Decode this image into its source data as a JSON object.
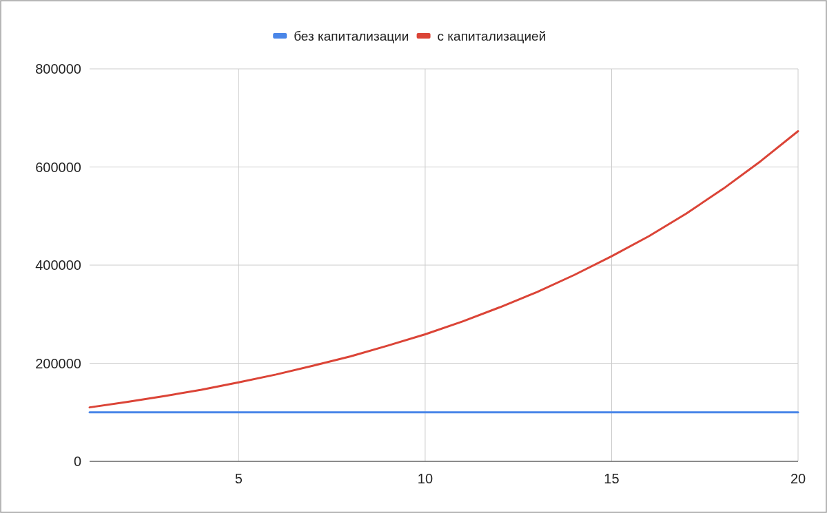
{
  "chart_data": {
    "type": "line",
    "x": [
      1,
      2,
      3,
      4,
      5,
      6,
      7,
      8,
      9,
      10,
      11,
      12,
      13,
      14,
      15,
      16,
      17,
      18,
      19,
      20
    ],
    "series": [
      {
        "name": "без капитализации",
        "color": "#4a86e8",
        "values": [
          100000,
          100000,
          100000,
          100000,
          100000,
          100000,
          100000,
          100000,
          100000,
          100000,
          100000,
          100000,
          100000,
          100000,
          100000,
          100000,
          100000,
          100000,
          100000,
          100000
        ]
      },
      {
        "name": "с капитализацией",
        "color": "#db4437",
        "values": [
          110000,
          121000,
          133000,
          146000,
          161000,
          177000,
          195000,
          214000,
          236000,
          259000,
          285000,
          314000,
          345000,
          380000,
          418000,
          459000,
          505000,
          556000,
          612000,
          673000
        ]
      }
    ],
    "xlim": [
      1,
      20
    ],
    "xticks": [
      5,
      10,
      15,
      20
    ],
    "ylim": [
      0,
      800000
    ],
    "yticks": [
      0,
      200000,
      400000,
      600000,
      800000
    ],
    "grid": true,
    "legend": "top",
    "marker": "none",
    "line_style": "solid"
  }
}
